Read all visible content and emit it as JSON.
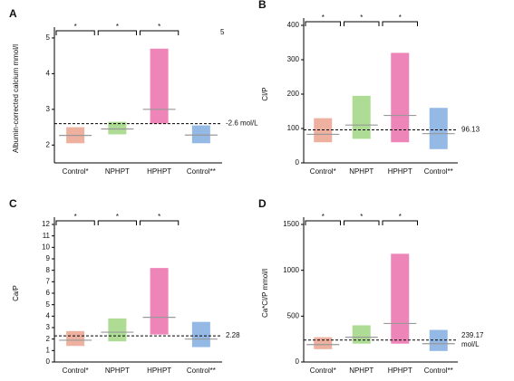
{
  "chart_data": [
    {
      "type": "strip",
      "panel": "A",
      "ylabel": "Albumin-corrected calcium mmol/l",
      "categories": [
        "Control*",
        "NPHPT",
        "HPHPT",
        "Control**"
      ],
      "colors": [
        "#e07050",
        "#6cbf3c",
        "#e0207f",
        "#3c7fd0"
      ],
      "values": [
        2.27,
        2.45,
        3.0,
        2.28
      ],
      "low": [
        2.05,
        2.3,
        2.6,
        2.05
      ],
      "high": [
        2.5,
        2.65,
        4.7,
        2.55
      ],
      "ylim": [
        1.5,
        5.1
      ],
      "yticks": [
        2,
        3,
        4,
        5
      ],
      "threshold": 2.6,
      "threshold_label": [
        "-2.6 mol/L"
      ],
      "significance": [
        "*",
        "*",
        "*"
      ],
      "stray_label": "5"
    },
    {
      "type": "strip",
      "panel": "B",
      "ylabel": "Cl/P",
      "categories": [
        "Control*",
        "NPHPT",
        "HPHPT",
        "Control**"
      ],
      "colors": [
        "#e07050",
        "#6cbf3c",
        "#e0207f",
        "#3c7fd0"
      ],
      "values": [
        83,
        110,
        138,
        85
      ],
      "low": [
        60,
        70,
        60,
        40
      ],
      "high": [
        130,
        195,
        320,
        160
      ],
      "ylim": [
        0,
        400
      ],
      "yticks": [
        0,
        100,
        200,
        300,
        400
      ],
      "threshold": 96.13,
      "threshold_label": [
        "96.13"
      ],
      "significance": [
        "*",
        "*",
        "*"
      ]
    },
    {
      "type": "strip",
      "panel": "C",
      "ylabel": "Ca/P",
      "categories": [
        "Control*",
        "NPHPT",
        "HPHPT",
        "Control**"
      ],
      "colors": [
        "#e07050",
        "#6cbf3c",
        "#e0207f",
        "#3c7fd0"
      ],
      "values": [
        1.9,
        2.6,
        3.9,
        2.0
      ],
      "low": [
        1.4,
        1.8,
        2.4,
        1.3
      ],
      "high": [
        2.7,
        3.8,
        8.2,
        3.5
      ],
      "ylim": [
        0,
        12
      ],
      "yticks": [
        0,
        1,
        2,
        3,
        4,
        5,
        6,
        7,
        8,
        9,
        10,
        11,
        12
      ],
      "threshold": 2.28,
      "threshold_label": [
        "2.28"
      ],
      "significance": [
        "*",
        "*",
        "*"
      ]
    },
    {
      "type": "strip",
      "panel": "D",
      "ylabel": "Ca*Cl/P mmol/l",
      "categories": [
        "Control*",
        "NPHPT",
        "HPHPT",
        "Control**"
      ],
      "colors": [
        "#e07050",
        "#6cbf3c",
        "#e0207f",
        "#3c7fd0"
      ],
      "values": [
        190,
        270,
        420,
        200
      ],
      "low": [
        140,
        200,
        200,
        120
      ],
      "high": [
        270,
        400,
        1180,
        350
      ],
      "ylim": [
        0,
        1500
      ],
      "yticks": [
        0,
        500,
        1000,
        1500
      ],
      "threshold": 239.17,
      "threshold_label": [
        "239.17",
        "mol/L"
      ],
      "significance": [
        "*",
        "*",
        "*"
      ]
    }
  ]
}
